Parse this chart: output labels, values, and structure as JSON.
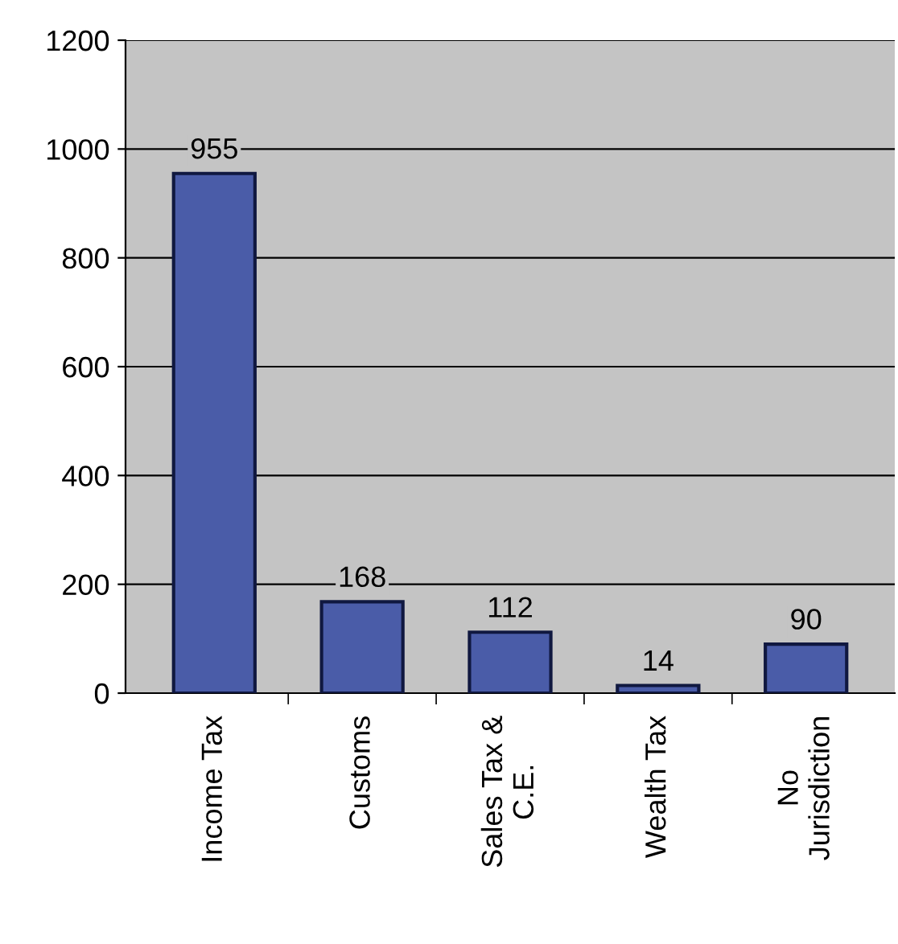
{
  "chart_data": {
    "type": "bar",
    "categories": [
      "Income Tax",
      "Customs",
      "Sales Tax &\nC.E.",
      "Wealth Tax",
      "No\nJurisdiction"
    ],
    "values": [
      955,
      168,
      112,
      14,
      90
    ],
    "color": "#4a5ca8",
    "ylim": [
      0,
      1200
    ],
    "yticks": [
      0,
      200,
      400,
      600,
      800,
      1000,
      1200
    ],
    "grid": "y",
    "data_labels": true
  }
}
